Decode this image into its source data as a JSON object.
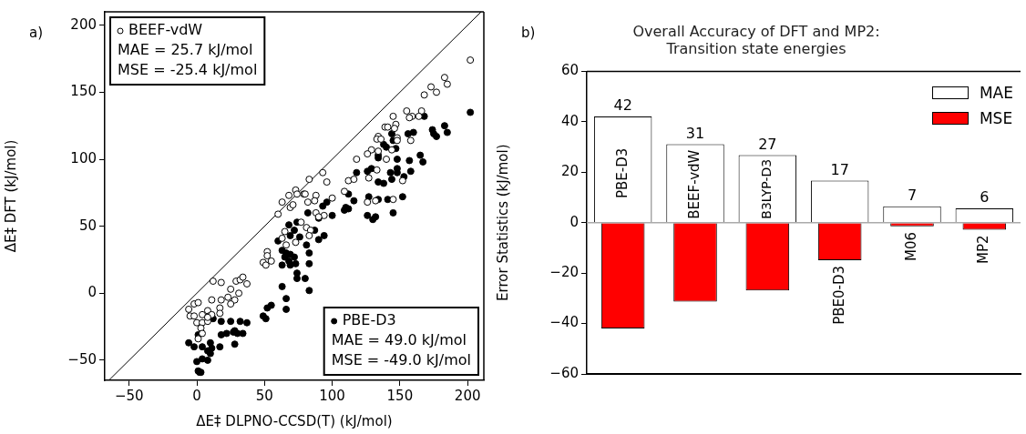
{
  "chart_data": [
    {
      "type": "scatter",
      "xlabel": "ΔE‡ DLPNO-CCSD(T) (kJ/mol)",
      "ylabel": "ΔE‡ DFT (kJ/mol)",
      "xlim": [
        -68,
        212
      ],
      "ylim": [
        -65,
        210
      ],
      "xticks": [
        -50,
        0,
        50,
        100,
        150,
        200
      ],
      "yticks": [
        -50,
        0,
        50,
        100,
        150,
        200
      ],
      "grid": false,
      "legend": "top left",
      "marker": "circle",
      "annotations": [
        "a)",
        "MAE = 25.7 kJ/mol",
        "MSE = -25.4 kJ/mol",
        "MAE = 49.0 kJ/mol",
        "MSE = -49.0 kJ/mol"
      ],
      "series": [
        {
          "name": "BEEF-vdW",
          "color": "#ffffff",
          "x": [
            202,
            183,
            185,
            173,
            177,
            168,
            155,
            159,
            157,
            166,
            164,
            145,
            139,
            141,
            147,
            146,
            134,
            133,
            136,
            148,
            148,
            158,
            144,
            129,
            126,
            134,
            140,
            118,
            152,
            133,
            127,
            112,
            116,
            96,
            93,
            83,
            109,
            126,
            132,
            145,
            100,
            73,
            68,
            74,
            79,
            88,
            87,
            63,
            82,
            80,
            60,
            69,
            71,
            88,
            94,
            90,
            77,
            81,
            84,
            65,
            83,
            63,
            73,
            66,
            52,
            52,
            49,
            51,
            55,
            12,
            18,
            29,
            32,
            34,
            37,
            25,
            31,
            28,
            23,
            18,
            11,
            25,
            17,
            -2,
            -6,
            1,
            -5,
            -2,
            4,
            8,
            9,
            11,
            17,
            0,
            4,
            8,
            3,
            4,
            1,
            8
          ],
          "values": [
            174,
            161,
            156,
            154,
            150,
            148,
            136,
            132,
            131,
            136,
            132,
            132,
            124,
            124,
            126,
            123,
            117,
            115,
            115,
            116,
            114,
            114,
            107,
            107,
            104,
            106,
            100,
            100,
            84,
            92,
            86,
            84,
            85,
            83,
            90,
            85,
            76,
            68,
            69,
            70,
            71,
            77,
            73,
            74,
            74,
            73,
            69,
            68,
            68,
            74,
            59,
            64,
            66,
            60,
            58,
            57,
            53,
            49,
            47,
            46,
            43,
            41,
            38,
            36,
            31,
            28,
            23,
            21,
            24,
            9,
            8,
            9,
            10,
            12,
            7,
            3,
            0,
            -5,
            -3,
            -5,
            -5,
            -8,
            -11,
            -8,
            -12,
            -7,
            -17,
            -17,
            -16,
            -13,
            -17,
            -16,
            -15,
            -22,
            -22,
            -21,
            -26,
            -30,
            -34,
            -18
          ]
        },
        {
          "name": "PBE-D3",
          "color": "#000000",
          "x": [
            202,
            168,
            183,
            185,
            174,
            175,
            177,
            156,
            160,
            144,
            145,
            138,
            140,
            147,
            134,
            134,
            148,
            157,
            165,
            167,
            118,
            126,
            129,
            148,
            148,
            158,
            143,
            153,
            144,
            134,
            138,
            112,
            116,
            96,
            127,
            134,
            141,
            152,
            93,
            110,
            126,
            130,
            132,
            145,
            109,
            112,
            100,
            82,
            90,
            87,
            90,
            94,
            74,
            68,
            69,
            72,
            76,
            60,
            81,
            83,
            63,
            66,
            69,
            72,
            65,
            68,
            73,
            63,
            83,
            69,
            74,
            74,
            80,
            83,
            63,
            66,
            66,
            55,
            52,
            49,
            51,
            37,
            32,
            28,
            25,
            34,
            30,
            27,
            22,
            18,
            28,
            18,
            12,
            1,
            -6,
            -2,
            4,
            10,
            11,
            8,
            10,
            17,
            0,
            4,
            8,
            1,
            2,
            3
          ],
          "values": [
            135,
            132,
            125,
            120,
            122,
            119,
            117,
            119,
            120,
            119,
            114,
            111,
            109,
            108,
            103,
            101,
            100,
            99,
            103,
            98,
            90,
            91,
            93,
            93,
            90,
            91,
            90,
            87,
            85,
            83,
            82,
            74,
            69,
            68,
            72,
            70,
            70,
            72,
            65,
            64,
            58,
            55,
            57,
            60,
            62,
            63,
            58,
            60,
            56,
            47,
            40,
            43,
            53,
            51,
            43,
            47,
            42,
            39,
            36,
            30,
            32,
            30,
            29,
            27,
            27,
            24,
            22,
            21,
            22,
            21,
            15,
            11,
            11,
            2,
            5,
            -4,
            -12,
            -9,
            -11,
            -17,
            -19,
            -22,
            -21,
            -28,
            -21,
            -30,
            -30,
            -29,
            -30,
            -31,
            -38,
            -21,
            -19,
            -31,
            -37,
            -40,
            -40,
            -37,
            -41,
            -43,
            -45,
            -40,
            -51,
            -49,
            -50,
            -58,
            -59,
            -59
          ]
        },
        {
          "type": "line",
          "color": "#000000",
          "marker": "none",
          "x": [
            -65,
            210
          ],
          "values": [
            -65,
            210
          ]
        }
      ]
    },
    {
      "type": "bar",
      "title": "Overall Accuracy of DFT and MP2:\nTransition state energies",
      "ylabel": "Error Statistics (kJ/mol)",
      "ylim": [
        -60,
        60
      ],
      "yticks": [
        -60,
        -40,
        -20,
        0,
        20,
        40,
        60
      ],
      "grid": false,
      "legend": "top right",
      "annotations": [
        "b)"
      ],
      "categories": [
        "PBE-D3",
        "BEEF-vdW",
        "B3LYP-D3",
        "PBE0-D3",
        "M06",
        "MP2"
      ],
      "series": [
        {
          "name": "MAE",
          "color": "#ffffff",
          "values": [
            42.1,
            31.1,
            26.8,
            16.7,
            6.5,
            5.7
          ],
          "value_labels": [
            "42",
            "31",
            "27",
            "17",
            "7",
            "6"
          ]
        },
        {
          "name": "MSE",
          "color": "#ff0000",
          "values": [
            -42,
            -31.3,
            -26.9,
            -14.9,
            -1.5,
            -2.8
          ]
        }
      ]
    }
  ]
}
